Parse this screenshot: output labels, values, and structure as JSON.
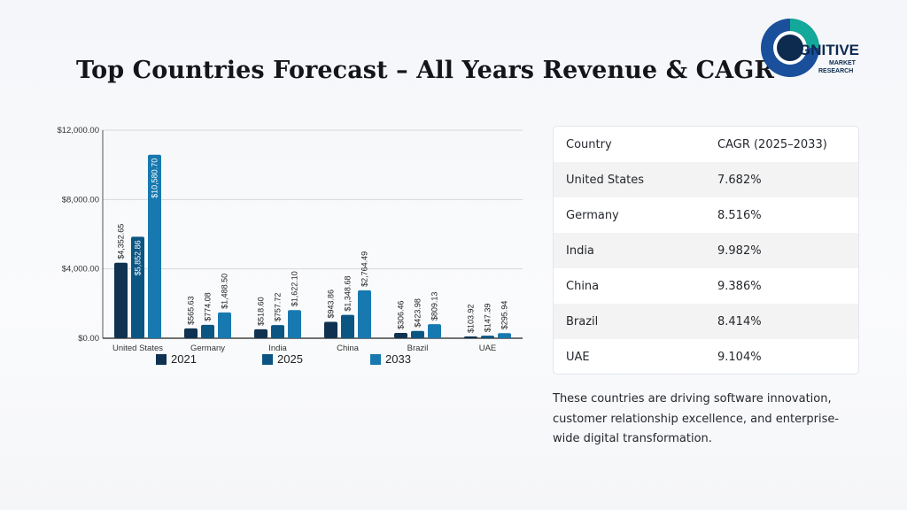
{
  "title": "Top Countries Forecast – All Years Revenue & CAGR",
  "logo": {
    "word": "GNITIVE",
    "sub1": "MARKET",
    "sub2": "RESEARCH",
    "colors": {
      "teal": "#12a89a",
      "blue": "#1a4f9c",
      "navy": "#0d2a4f"
    }
  },
  "chart_data": {
    "type": "bar",
    "categories": [
      "United States",
      "Germany",
      "India",
      "China",
      "Brazil",
      "UAE"
    ],
    "series": [
      {
        "name": "2021",
        "color": "#0f3250",
        "values": [
          4352.65,
          565.63,
          518.6,
          943.86,
          306.46,
          103.92
        ],
        "labels": [
          "$4,352.65",
          "$565.63",
          "$518.60",
          "$943.86",
          "$306.46",
          "$103.92"
        ]
      },
      {
        "name": "2025",
        "color": "#0b5582",
        "values": [
          5852.86,
          774.08,
          757.72,
          1348.68,
          423.98,
          147.39
        ],
        "labels": [
          "$5,852.86",
          "$774.08",
          "$757.72",
          "$1,348.68",
          "$423.98",
          "$147.39"
        ]
      },
      {
        "name": "2033",
        "color": "#1779b0",
        "values": [
          10580.7,
          1488.5,
          1622.1,
          2764.49,
          809.13,
          295.94
        ],
        "labels": [
          "$10,580.70",
          "$1,488.50",
          "$1,622.10",
          "$2,764.49",
          "$809.13",
          "$295.94"
        ]
      }
    ],
    "ylim": [
      0,
      12000
    ],
    "yticks": [
      0,
      4000,
      8000,
      12000
    ],
    "ytick_labels": [
      "$0.00",
      "$4,000.00",
      "$8,000.00",
      "$12,000.00"
    ],
    "grid": true,
    "legend_position": "bottom"
  },
  "table": {
    "headers": [
      "Country",
      "CAGR (2025–2033)"
    ],
    "rows": [
      [
        "United States",
        "7.682%"
      ],
      [
        "Germany",
        "8.516%"
      ],
      [
        "India",
        "9.982%"
      ],
      [
        "China",
        "9.386%"
      ],
      [
        "Brazil",
        "8.414%"
      ],
      [
        "UAE",
        "9.104%"
      ]
    ]
  },
  "note": "These countries are driving software innovation, customer relationship excellence, and enterprise-wide digital transformation."
}
